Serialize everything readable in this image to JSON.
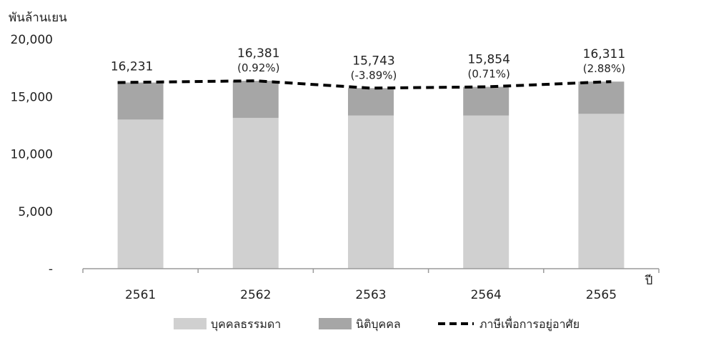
{
  "chart_data": {
    "type": "bar",
    "stacked": true,
    "ylabel": "พันล้านเยน",
    "xlabel": "ปี",
    "ylim": [
      0,
      20000
    ],
    "yticks": [
      {
        "value": 0,
        "label": "-"
      },
      {
        "value": 5000,
        "label": "5,000"
      },
      {
        "value": 10000,
        "label": "10,000"
      },
      {
        "value": 15000,
        "label": "15,000"
      },
      {
        "value": 20000,
        "label": "20,000"
      }
    ],
    "categories": [
      "2561",
      "2562",
      "2563",
      "2564",
      "2565"
    ],
    "series": [
      {
        "name": "บุคคลธรรมดา",
        "kind": "bar",
        "color": "#d0d0d0",
        "values": [
          13000,
          13150,
          13350,
          13350,
          13500
        ]
      },
      {
        "name": "นิติบุคคล",
        "kind": "bar",
        "color": "#a6a6a6",
        "values": [
          3231,
          3231,
          2393,
          2504,
          2811
        ]
      },
      {
        "name": "ภาษีเพื่อการอยู่อาศัย",
        "kind": "line",
        "style": "dashed",
        "color": "#000000",
        "values": [
          16231,
          16381,
          15743,
          15854,
          16311
        ]
      }
    ],
    "total_labels": [
      "16,231",
      "16,381",
      "15,743",
      "15,854",
      "16,311"
    ],
    "growth_labels": [
      "",
      "(0.92%)",
      "(-3.89%)",
      "(0.71%)",
      "(2.88%)"
    ],
    "legend_position": "bottom",
    "grid": false
  }
}
